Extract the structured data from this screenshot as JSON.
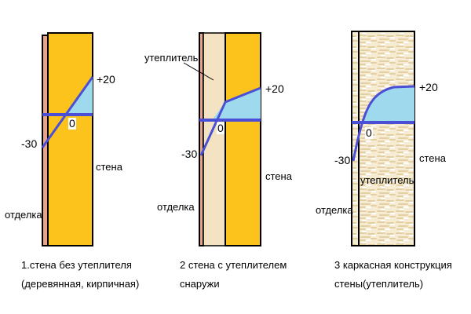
{
  "colors": {
    "wall": "#fbc31c",
    "finish": "#e8a38a",
    "insulation_layer": "#f3e3c3",
    "frame_fill": "#f5ecd3",
    "cold_zone": "#9fd9ee",
    "temperature_line": "#4a4fd6",
    "outline": "#000000"
  },
  "panels": [
    {
      "minus_label": "-30",
      "plus_label": "+20",
      "zero_label": "0",
      "wall_label": "стена",
      "finish_label": "отделка",
      "caption_line1": "1.стена без утеплителя",
      "caption_line2": "(деревянная, кирпичная)"
    },
    {
      "minus_label": "-30",
      "plus_label": "+20",
      "zero_label": "0",
      "wall_label": "стена",
      "finish_label": "отделка",
      "insulation_label": "утеплитель",
      "caption_line1": "2 стена с утеплителем",
      "caption_line2": "снаружи"
    },
    {
      "minus_label": "-30",
      "plus_label": "+20",
      "zero_label": "0",
      "wall_label": "стена",
      "finish_label": "отделка",
      "insulation_label": "утеплитель",
      "caption_line1": "3 каркасная конструкция",
      "caption_line2": "стены(утеплитель)"
    }
  ]
}
